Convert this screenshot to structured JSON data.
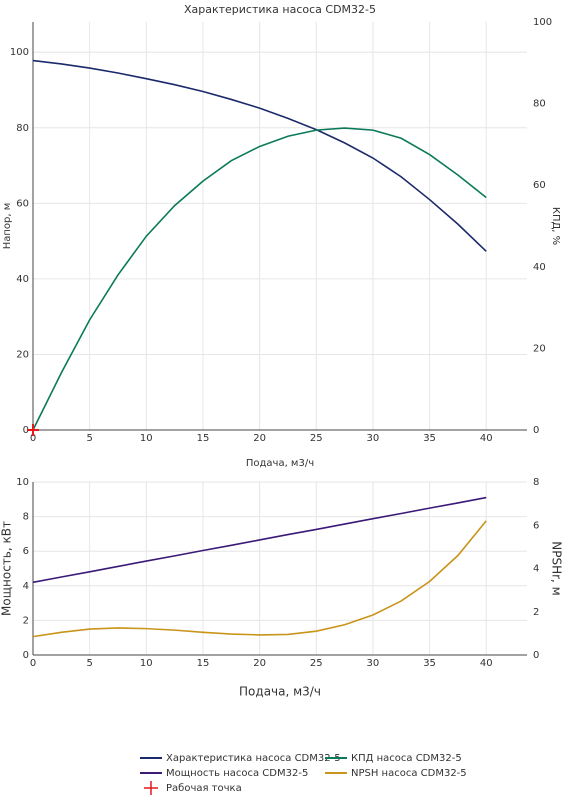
{
  "chart_data": [
    {
      "type": "line",
      "title": "Характеристика насоса CDM32-5",
      "xlabel": "Подача, м3/ч",
      "ylabel": "Напор, м",
      "y2label": "КПД, %",
      "xlim": [
        0,
        43.6
      ],
      "xticks": [
        0,
        5,
        10,
        15,
        20,
        25,
        30,
        35,
        40
      ],
      "ylim": [
        0,
        108
      ],
      "yticks": [
        0,
        20,
        40,
        60,
        80,
        100
      ],
      "y2lim": [
        0,
        100
      ],
      "y2ticks": [
        0,
        20,
        40,
        60,
        80,
        100
      ],
      "grid": true,
      "series": [
        {
          "name": "Характеристика насоса CDM32-5",
          "color": "#1b2a6b",
          "x": [
            0,
            2.5,
            5,
            7.5,
            10,
            12.5,
            15,
            17.5,
            20,
            22.5,
            25,
            27.5,
            30,
            32.5,
            35,
            37.5,
            40
          ],
          "values": [
            97.8,
            96.9,
            95.8,
            94.5,
            93.0,
            91.4,
            89.6,
            87.5,
            85.2,
            82.5,
            79.5,
            76.0,
            72.0,
            67.0,
            61.0,
            54.5,
            47.3
          ]
        },
        {
          "name": "КПД насоса CDM32-5",
          "color": "#0b7a5a",
          "axis": "y2",
          "x": [
            0,
            2.5,
            5,
            7.5,
            10,
            12.5,
            15,
            17.5,
            20,
            22.5,
            25,
            27.5,
            30,
            32.5,
            35,
            37.5,
            40
          ],
          "values": [
            0,
            14,
            27,
            38,
            47.5,
            55,
            61,
            66,
            69.5,
            72,
            73.5,
            74,
            73.5,
            71.5,
            67.5,
            62.5,
            57
          ]
        },
        {
          "name": "Рабочая точка",
          "color": "#e41a1c",
          "marker": "cross",
          "x": [
            0
          ],
          "values": [
            0
          ]
        }
      ]
    },
    {
      "type": "line",
      "xlabel": "Подача, м3/ч",
      "ylabel": "Мощность, кВт",
      "y2label": "NPSHr, м",
      "xlim": [
        0,
        43.6
      ],
      "xticks": [
        0,
        5,
        10,
        15,
        20,
        25,
        30,
        35,
        40
      ],
      "ylim": [
        0,
        10
      ],
      "yticks": [
        0,
        2,
        4,
        6,
        8,
        10
      ],
      "y2lim": [
        0,
        8
      ],
      "y2ticks": [
        0,
        2,
        4,
        6,
        8
      ],
      "grid": true,
      "series": [
        {
          "name": "Мощность насоса CDM32-5",
          "color": "#3b1a78",
          "x": [
            0,
            2.5,
            5,
            7.5,
            10,
            12.5,
            15,
            17.5,
            20,
            22.5,
            25,
            27.5,
            30,
            32.5,
            35,
            37.5,
            40
          ],
          "values": [
            4.2,
            4.51,
            4.81,
            5.12,
            5.43,
            5.73,
            6.04,
            6.34,
            6.65,
            6.96,
            7.26,
            7.57,
            7.88,
            8.18,
            8.49,
            8.79,
            9.1
          ]
        },
        {
          "name": "NPSH насоса CDM32-5",
          "color": "#c9941a",
          "axis": "y2",
          "x": [
            0,
            2.5,
            5,
            7.5,
            10,
            12.5,
            15,
            17.5,
            20,
            22.5,
            25,
            27.5,
            30,
            32.5,
            35,
            37.5,
            40
          ],
          "values": [
            0.85,
            1.05,
            1.2,
            1.25,
            1.22,
            1.15,
            1.05,
            0.97,
            0.93,
            0.95,
            1.1,
            1.4,
            1.85,
            2.5,
            3.4,
            4.6,
            6.2
          ]
        }
      ]
    }
  ]
}
